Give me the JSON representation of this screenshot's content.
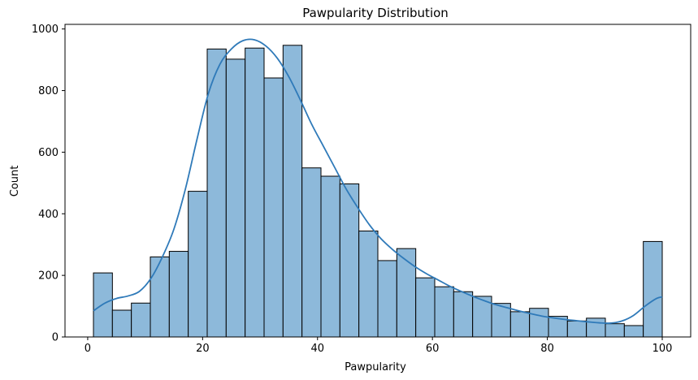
{
  "chart_data": {
    "type": "bar",
    "title": "Pawpularity Distribution",
    "xlabel": "Pawpularity",
    "ylabel": "Count",
    "xlim": [
      -3.95,
      104.95
    ],
    "ylim": [
      0,
      1015
    ],
    "xticks": [
      0,
      20,
      40,
      60,
      80,
      100
    ],
    "yticks": [
      0,
      200,
      400,
      600,
      800,
      1000
    ],
    "grid": false,
    "legend": "none",
    "bin_start": 1,
    "bin_width": 3.3,
    "counts": [
      208,
      87,
      110,
      260,
      278,
      473,
      935,
      902,
      938,
      841,
      947,
      549,
      522,
      497,
      344,
      248,
      287,
      192,
      163,
      147,
      132,
      109,
      82,
      93,
      67,
      52,
      61,
      43,
      37,
      310
    ],
    "kde": {
      "x": [
        1,
        3,
        5,
        7,
        9,
        11,
        13,
        15,
        17,
        19,
        21,
        23,
        25,
        27,
        29,
        31,
        33,
        35,
        37,
        39,
        41,
        43,
        45,
        47,
        49,
        51,
        53,
        55,
        57,
        59,
        61,
        63,
        65,
        67,
        69,
        71,
        73,
        75,
        77,
        79,
        81,
        83,
        85,
        87,
        89,
        91,
        93,
        95,
        97,
        99,
        100
      ],
      "y": [
        85,
        110,
        125,
        133,
        148,
        190,
        260,
        350,
        480,
        640,
        790,
        885,
        935,
        962,
        965,
        945,
        905,
        845,
        770,
        690,
        620,
        550,
        480,
        420,
        365,
        320,
        285,
        255,
        228,
        205,
        185,
        165,
        148,
        132,
        118,
        105,
        95,
        85,
        76,
        68,
        62,
        57,
        53,
        49,
        46,
        45,
        52,
        70,
        100,
        125,
        130
      ]
    },
    "colors": {
      "bar_fill": "#8db9da",
      "bar_edge": "#000000",
      "kde_line": "#2f7ab9"
    }
  }
}
